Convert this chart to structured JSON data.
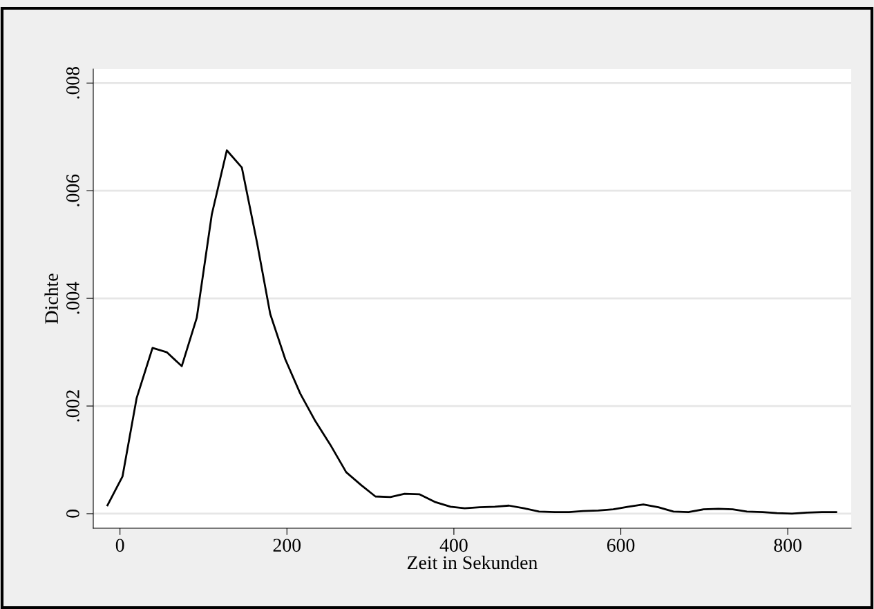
{
  "chart_data": {
    "type": "line",
    "xlabel": "Zeit in Sekunden",
    "ylabel": "Dichte",
    "x": [
      -15,
      3,
      20,
      39,
      56,
      74,
      92,
      110,
      128,
      146,
      164,
      180,
      198,
      216,
      234,
      252,
      271,
      289,
      306,
      324,
      341,
      359,
      377,
      396,
      413,
      431,
      449,
      466,
      484,
      502,
      521,
      538,
      555,
      573,
      591,
      609,
      627,
      645,
      663,
      681,
      699,
      717,
      734,
      751,
      770,
      787,
      805,
      823,
      841,
      858
    ],
    "series": [
      {
        "color": "#000000",
        "values": [
          0.000156,
          0.00069,
          0.00215,
          0.00308,
          0.003,
          0.00274,
          0.00364,
          0.00556,
          0.00675,
          0.00643,
          0.00505,
          0.00371,
          0.00287,
          0.00223,
          0.00172,
          0.00128,
          0.00077,
          0.00053,
          0.00032,
          0.00031,
          0.00037,
          0.00036,
          0.00022,
          0.00013,
          0.0001,
          0.00012,
          0.00013,
          0.00015,
          0.0001,
          4e-05,
          3e-05,
          3e-05,
          5e-05,
          6e-05,
          8e-05,
          0.00013,
          0.00017,
          0.00012,
          4e-05,
          3e-05,
          8e-05,
          9e-05,
          8e-05,
          4e-05,
          3e-05,
          1e-05,
          0,
          2e-05,
          3e-05,
          3e-05
        ]
      }
    ],
    "xlim": [
      -32,
      876
    ],
    "ylim": [
      -0.00027,
      0.00826
    ],
    "xticks": [
      0,
      200,
      400,
      600,
      800
    ],
    "yticks": [
      0,
      {
        "value": 0.002,
        "label": ".002"
      },
      {
        "value": 0.004,
        "label": ".004"
      },
      {
        "value": 0.006,
        "label": ".006"
      },
      {
        "value": 0.008,
        "label": ".008"
      }
    ],
    "grid": "y",
    "legend": false,
    "marker": "none",
    "line_style": "solid"
  }
}
